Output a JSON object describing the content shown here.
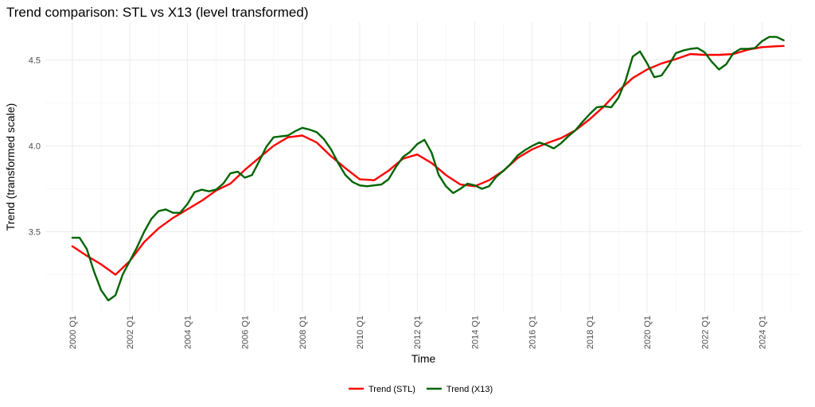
{
  "chart_data": {
    "type": "line",
    "title": "Trend comparison: STL vs X13 (level transformed)",
    "xlabel": "Time",
    "ylabel": "Trend (transformed scale)",
    "x_tick_labels": [
      "2000 Q1",
      "2002 Q1",
      "2004 Q1",
      "2006 Q1",
      "2008 Q1",
      "2010 Q1",
      "2012 Q1",
      "2014 Q1",
      "2016 Q1",
      "2018 Q1",
      "2020 Q1",
      "2022 Q1",
      "2024 Q1"
    ],
    "x_tick_values": [
      2000,
      2002,
      2004,
      2006,
      2008,
      2010,
      2012,
      2014,
      2016,
      2018,
      2020,
      2022,
      2024
    ],
    "y_tick_labels": [
      "3.5",
      "4.0",
      "4.5"
    ],
    "y_tick_values": [
      3.5,
      4.0,
      4.5
    ],
    "xlim": [
      1999.06,
      2025.37
    ],
    "ylim": [
      3.03,
      4.72
    ],
    "grid": true,
    "legend_position": "bottom",
    "series": [
      {
        "name": "Trend (STL)",
        "color": "#ff0000",
        "points": [
          [
            2000.0,
            3.415
          ],
          [
            2000.5,
            3.36
          ],
          [
            2001.0,
            3.31
          ],
          [
            2001.5,
            3.25
          ],
          [
            2002.0,
            3.33
          ],
          [
            2002.5,
            3.44
          ],
          [
            2003.0,
            3.52
          ],
          [
            2003.5,
            3.58
          ],
          [
            2004.0,
            3.63
          ],
          [
            2004.5,
            3.68
          ],
          [
            2005.0,
            3.74
          ],
          [
            2005.5,
            3.78
          ],
          [
            2006.0,
            3.86
          ],
          [
            2006.5,
            3.93
          ],
          [
            2007.0,
            4.0
          ],
          [
            2007.5,
            4.05
          ],
          [
            2008.0,
            4.06
          ],
          [
            2008.5,
            4.02
          ],
          [
            2009.0,
            3.94
          ],
          [
            2009.5,
            3.87
          ],
          [
            2010.0,
            3.805
          ],
          [
            2010.5,
            3.8
          ],
          [
            2011.0,
            3.855
          ],
          [
            2011.5,
            3.925
          ],
          [
            2012.0,
            3.95
          ],
          [
            2012.5,
            3.9
          ],
          [
            2013.0,
            3.83
          ],
          [
            2013.5,
            3.775
          ],
          [
            2014.0,
            3.765
          ],
          [
            2014.5,
            3.8
          ],
          [
            2015.0,
            3.855
          ],
          [
            2015.5,
            3.93
          ],
          [
            2016.0,
            3.98
          ],
          [
            2016.5,
            4.015
          ],
          [
            2017.0,
            4.045
          ],
          [
            2017.5,
            4.09
          ],
          [
            2018.0,
            4.155
          ],
          [
            2018.5,
            4.23
          ],
          [
            2019.0,
            4.32
          ],
          [
            2019.5,
            4.395
          ],
          [
            2020.0,
            4.445
          ],
          [
            2020.5,
            4.48
          ],
          [
            2021.0,
            4.505
          ],
          [
            2021.5,
            4.535
          ],
          [
            2022.0,
            4.53
          ],
          [
            2022.5,
            4.53
          ],
          [
            2023.0,
            4.535
          ],
          [
            2023.5,
            4.56
          ],
          [
            2024.0,
            4.575
          ],
          [
            2024.5,
            4.58
          ],
          [
            2024.75,
            4.582
          ]
        ]
      },
      {
        "name": "Trend (X13)",
        "color": "#006400",
        "points": [
          [
            2000.0,
            3.465
          ],
          [
            2000.25,
            3.465
          ],
          [
            2000.5,
            3.4
          ],
          [
            2000.75,
            3.27
          ],
          [
            2001.0,
            3.16
          ],
          [
            2001.25,
            3.1
          ],
          [
            2001.5,
            3.13
          ],
          [
            2001.75,
            3.25
          ],
          [
            2002.0,
            3.33
          ],
          [
            2002.25,
            3.41
          ],
          [
            2002.5,
            3.5
          ],
          [
            2002.75,
            3.575
          ],
          [
            2003.0,
            3.62
          ],
          [
            2003.25,
            3.63
          ],
          [
            2003.5,
            3.61
          ],
          [
            2003.75,
            3.61
          ],
          [
            2004.0,
            3.66
          ],
          [
            2004.25,
            3.73
          ],
          [
            2004.5,
            3.745
          ],
          [
            2004.75,
            3.735
          ],
          [
            2005.0,
            3.745
          ],
          [
            2005.25,
            3.78
          ],
          [
            2005.5,
            3.84
          ],
          [
            2005.75,
            3.85
          ],
          [
            2006.0,
            3.815
          ],
          [
            2006.25,
            3.83
          ],
          [
            2006.5,
            3.91
          ],
          [
            2006.75,
            3.995
          ],
          [
            2007.0,
            4.05
          ],
          [
            2007.25,
            4.055
          ],
          [
            2007.5,
            4.06
          ],
          [
            2007.75,
            4.085
          ],
          [
            2008.0,
            4.105
          ],
          [
            2008.25,
            4.095
          ],
          [
            2008.5,
            4.08
          ],
          [
            2008.75,
            4.04
          ],
          [
            2009.0,
            3.98
          ],
          [
            2009.25,
            3.9
          ],
          [
            2009.5,
            3.83
          ],
          [
            2009.75,
            3.79
          ],
          [
            2010.0,
            3.77
          ],
          [
            2010.25,
            3.765
          ],
          [
            2010.5,
            3.77
          ],
          [
            2010.75,
            3.775
          ],
          [
            2011.0,
            3.805
          ],
          [
            2011.25,
            3.875
          ],
          [
            2011.5,
            3.935
          ],
          [
            2011.75,
            3.965
          ],
          [
            2012.0,
            4.01
          ],
          [
            2012.25,
            4.035
          ],
          [
            2012.5,
            3.96
          ],
          [
            2012.75,
            3.83
          ],
          [
            2013.0,
            3.765
          ],
          [
            2013.25,
            3.725
          ],
          [
            2013.5,
            3.75
          ],
          [
            2013.75,
            3.78
          ],
          [
            2014.0,
            3.77
          ],
          [
            2014.25,
            3.75
          ],
          [
            2014.5,
            3.765
          ],
          [
            2014.75,
            3.82
          ],
          [
            2015.0,
            3.855
          ],
          [
            2015.25,
            3.895
          ],
          [
            2015.5,
            3.945
          ],
          [
            2015.75,
            3.975
          ],
          [
            2016.0,
            4.0
          ],
          [
            2016.25,
            4.02
          ],
          [
            2016.5,
            4.005
          ],
          [
            2016.75,
            3.985
          ],
          [
            2017.0,
            4.015
          ],
          [
            2017.25,
            4.055
          ],
          [
            2017.5,
            4.09
          ],
          [
            2017.75,
            4.14
          ],
          [
            2018.0,
            4.185
          ],
          [
            2018.25,
            4.225
          ],
          [
            2018.5,
            4.23
          ],
          [
            2018.75,
            4.225
          ],
          [
            2019.0,
            4.28
          ],
          [
            2019.25,
            4.38
          ],
          [
            2019.5,
            4.52
          ],
          [
            2019.75,
            4.55
          ],
          [
            2020.0,
            4.48
          ],
          [
            2020.25,
            4.4
          ],
          [
            2020.5,
            4.41
          ],
          [
            2020.75,
            4.47
          ],
          [
            2021.0,
            4.54
          ],
          [
            2021.25,
            4.555
          ],
          [
            2021.5,
            4.565
          ],
          [
            2021.75,
            4.57
          ],
          [
            2022.0,
            4.545
          ],
          [
            2022.25,
            4.49
          ],
          [
            2022.5,
            4.445
          ],
          [
            2022.75,
            4.475
          ],
          [
            2023.0,
            4.54
          ],
          [
            2023.25,
            4.565
          ],
          [
            2023.5,
            4.565
          ],
          [
            2023.75,
            4.57
          ],
          [
            2024.0,
            4.61
          ],
          [
            2024.25,
            4.635
          ],
          [
            2024.5,
            4.635
          ],
          [
            2024.75,
            4.615
          ]
        ]
      }
    ]
  }
}
